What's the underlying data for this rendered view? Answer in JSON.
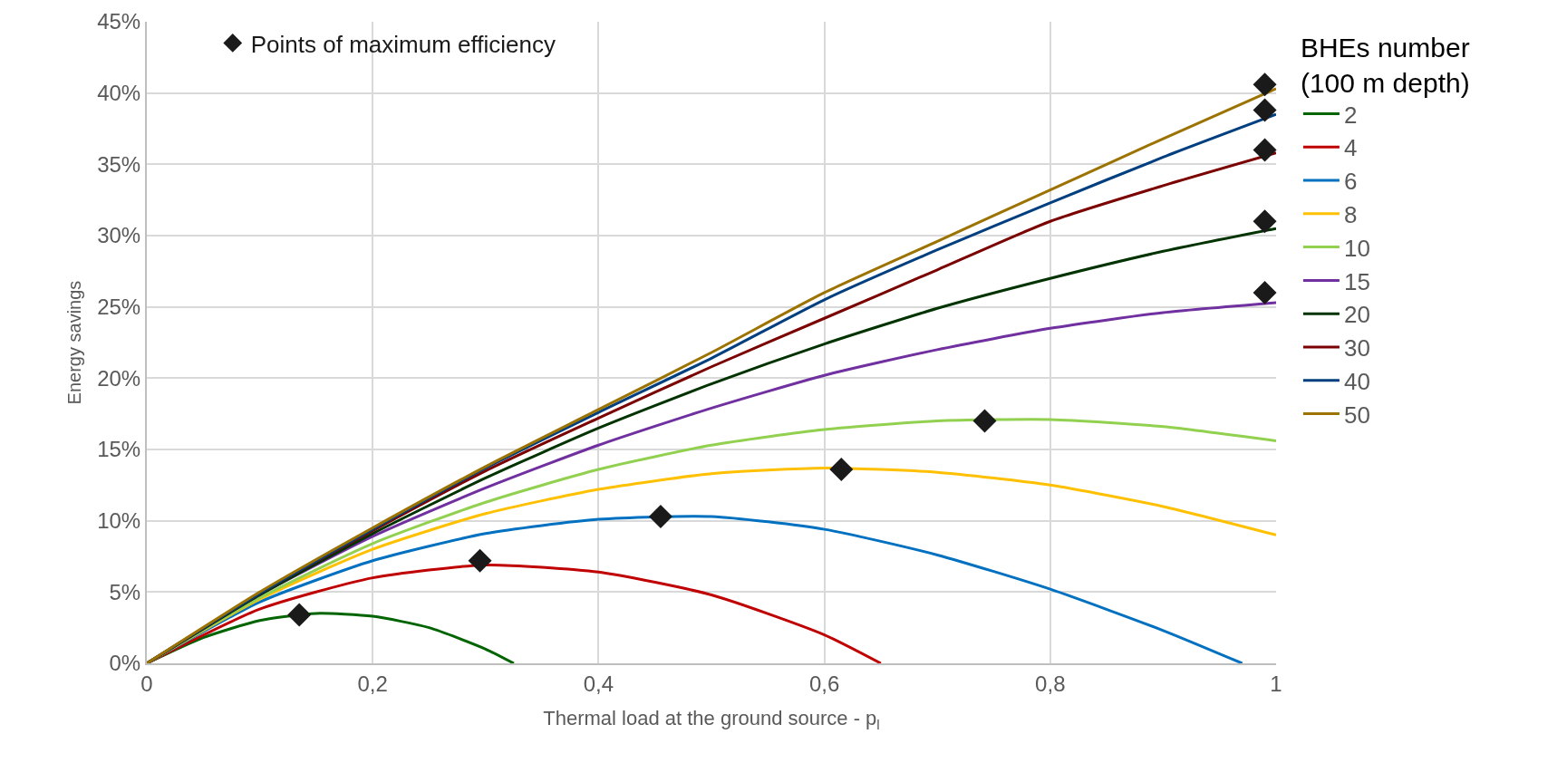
{
  "chart_data": {
    "type": "line",
    "xlabel": "Thermal load at the ground source - p$_{l}$",
    "ylabel": "Energy savings",
    "legend_title": "BHEs number\n(100 m depth)",
    "legend": "right",
    "grid": true,
    "line_style": "solid",
    "xlim": [
      0,
      1
    ],
    "xticks": [
      0,
      {
        "value": 0.2,
        "label": "0,2"
      },
      {
        "value": 0.4,
        "label": "0,4"
      },
      {
        "value": 0.6,
        "label": "0,6"
      },
      {
        "value": 0.8,
        "label": "0,8"
      },
      1
    ],
    "ylim": [
      0,
      45
    ],
    "yticks": [
      {
        "value": 0,
        "label": "0%"
      },
      {
        "value": 5,
        "label": "5%"
      },
      {
        "value": 10,
        "label": "10%"
      },
      {
        "value": 15,
        "label": "15%"
      },
      {
        "value": 20,
        "label": "20%"
      },
      {
        "value": 25,
        "label": "25%"
      },
      {
        "value": 30,
        "label": "30%"
      },
      {
        "value": 35,
        "label": "35%"
      },
      {
        "value": 40,
        "label": "40%"
      },
      {
        "value": 45,
        "label": "45%"
      }
    ],
    "series": [
      {
        "name": "2",
        "color": "#006400",
        "marker": "none",
        "x": [
          0,
          0.05,
          0.1,
          0.15,
          0.2,
          0.25,
          0.3,
          0.325
        ],
        "values": [
          0,
          1.8,
          3.0,
          3.5,
          3.3,
          2.5,
          1.0,
          0
        ]
      },
      {
        "name": "4",
        "color": "#c00000",
        "marker": "none",
        "x": [
          0,
          0.1,
          0.2,
          0.3,
          0.4,
          0.5,
          0.6,
          0.65
        ],
        "values": [
          0,
          3.8,
          6.0,
          6.9,
          6.4,
          4.8,
          2.0,
          0
        ]
      },
      {
        "name": "6",
        "color": "#0070c0",
        "marker": "none",
        "x": [
          0,
          0.1,
          0.2,
          0.3,
          0.4,
          0.5,
          0.6,
          0.7,
          0.8,
          0.9,
          0.97
        ],
        "values": [
          0,
          4.3,
          7.2,
          9.1,
          10.1,
          10.3,
          9.4,
          7.6,
          5.2,
          2.3,
          0
        ]
      },
      {
        "name": "8",
        "color": "#ffc000",
        "marker": "none",
        "x": [
          0,
          0.1,
          0.2,
          0.3,
          0.4,
          0.5,
          0.6,
          0.7,
          0.8,
          0.9,
          1
        ],
        "values": [
          0,
          4.5,
          8.0,
          10.5,
          12.2,
          13.3,
          13.7,
          13.4,
          12.5,
          11.0,
          9.0
        ]
      },
      {
        "name": "10",
        "color": "#92d050",
        "marker": "none",
        "x": [
          0,
          0.1,
          0.2,
          0.3,
          0.4,
          0.5,
          0.6,
          0.7,
          0.8,
          0.9,
          1
        ],
        "values": [
          0,
          4.6,
          8.4,
          11.3,
          13.6,
          15.3,
          16.4,
          17.0,
          17.1,
          16.6,
          15.6
        ]
      },
      {
        "name": "15",
        "color": "#7030a0",
        "marker": "none",
        "x": [
          0,
          0.1,
          0.2,
          0.3,
          0.4,
          0.5,
          0.6,
          0.7,
          0.8,
          0.9,
          1
        ],
        "values": [
          0,
          4.8,
          8.9,
          12.3,
          15.3,
          17.9,
          20.2,
          22.0,
          23.5,
          24.6,
          25.3
        ]
      },
      {
        "name": "20",
        "color": "#003300",
        "marker": "none",
        "x": [
          0,
          0.1,
          0.2,
          0.3,
          0.4,
          0.5,
          0.6,
          0.7,
          0.8,
          0.9,
          1
        ],
        "values": [
          0,
          4.8,
          9.1,
          13.0,
          16.5,
          19.6,
          22.4,
          24.9,
          27.0,
          28.9,
          30.5
        ]
      },
      {
        "name": "30",
        "color": "#7b0000",
        "marker": "none",
        "x": [
          0,
          0.1,
          0.2,
          0.3,
          0.4,
          0.5,
          0.6,
          0.7,
          0.8,
          0.9,
          1
        ],
        "values": [
          0,
          4.9,
          9.3,
          13.5,
          17.2,
          20.8,
          24.2,
          27.6,
          31.0,
          33.5,
          35.8
        ]
      },
      {
        "name": "40",
        "color": "#003f7f",
        "marker": "none",
        "x": [
          0,
          0.1,
          0.2,
          0.3,
          0.4,
          0.5,
          0.6,
          0.7,
          0.8,
          0.9,
          1
        ],
        "values": [
          0,
          4.9,
          9.4,
          13.7,
          17.6,
          21.4,
          25.5,
          29.0,
          32.3,
          35.5,
          38.5
        ]
      },
      {
        "name": "50",
        "color": "#9c7300",
        "marker": "none",
        "x": [
          0,
          0.1,
          0.2,
          0.3,
          0.4,
          0.5,
          0.6,
          0.7,
          0.8,
          0.9,
          1
        ],
        "values": [
          0,
          5.0,
          9.5,
          13.8,
          17.8,
          21.8,
          26.0,
          29.6,
          33.2,
          36.8,
          40.3
        ]
      },
      {
        "name": "Points of maximum efficiency",
        "type": "scatter",
        "color": "#1a1a1a",
        "marker": "diamond",
        "x": [
          0.135,
          0.295,
          0.455,
          0.615,
          0.742,
          0.99,
          0.99,
          0.99,
          0.99,
          0.99
        ],
        "values": [
          3.4,
          7.2,
          10.3,
          13.6,
          17.0,
          26.0,
          31.0,
          36.0,
          38.8,
          40.6
        ]
      }
    ]
  }
}
